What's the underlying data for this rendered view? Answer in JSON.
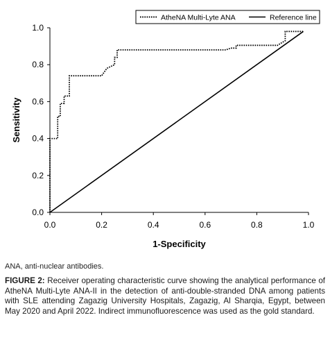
{
  "chart_data": {
    "type": "line",
    "xlabel": "1-Specificity",
    "ylabel": "Sensitivity",
    "xlim": [
      0,
      1
    ],
    "ylim": [
      0,
      1
    ],
    "xticks": [
      "0.0",
      "0.2",
      "0.4",
      "0.6",
      "0.8",
      "1.0"
    ],
    "yticks": [
      "0.0",
      "0.2",
      "0.4",
      "0.6",
      "0.8",
      "1.0"
    ],
    "grid": false,
    "legend_position": "top-right",
    "series": [
      {
        "name": "AtheNA Multi-Lyte ANA",
        "style": "dotted",
        "color": "#000000",
        "x": [
          0,
          0,
          0.03,
          0.03,
          0.04,
          0.04,
          0.055,
          0.055,
          0.075,
          0.075,
          0.2,
          0.22,
          0.25,
          0.25,
          0.26,
          0.26,
          0.68,
          0.7,
          0.72,
          0.72,
          0.88,
          0.91,
          0.91,
          0.97,
          0.98
        ],
        "y": [
          0,
          0.4,
          0.4,
          0.52,
          0.52,
          0.59,
          0.59,
          0.63,
          0.63,
          0.74,
          0.74,
          0.78,
          0.8,
          0.84,
          0.84,
          0.88,
          0.88,
          0.89,
          0.89,
          0.905,
          0.905,
          0.93,
          0.98,
          0.98,
          0.98
        ]
      },
      {
        "name": "Reference line",
        "style": "solid",
        "color": "#000000",
        "x": [
          0,
          0.98
        ],
        "y": [
          0,
          0.98
        ]
      }
    ]
  },
  "caption": {
    "abbreviation": "ANA, anti-nuclear antibodies.",
    "label": "FIGURE 2:",
    "text": "Receiver operating characteristic curve showing the analytical performance of AtheNA Multi-Lyte ANA-II in the detection of anti-double-stranded DNA among patients with SLE attending Zagazig University Hospitals, Zagazig, Al Sharqia, Egypt, between May 2020 and April 2022. Indirect immunofluorescence was used as the gold standard."
  }
}
